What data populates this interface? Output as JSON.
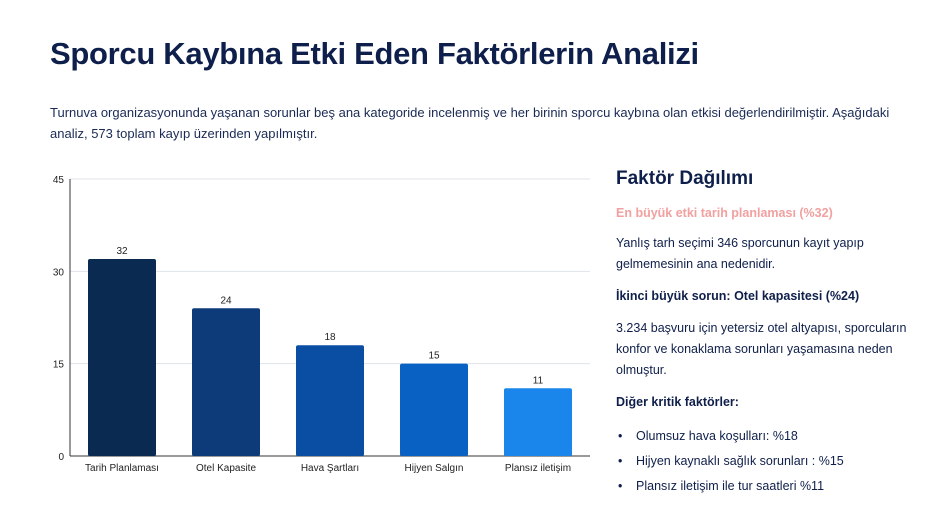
{
  "title": "Sporcu Kaybına Etki Eden Faktörlerin Analizi",
  "intro": "Turnuva organizasyonunda yaşanan sorunlar beş ana kategoride incelenmiş ve her birinin sporcu kaybına olan etkisi değerlendirilmiştir. Aşağıdaki analiz, 573 toplam kayıp üzerinden yapılmıştır.",
  "chart_data": {
    "type": "bar",
    "categories": [
      "Tarih Planlaması",
      "Otel Kapasite",
      "Hava Şartları",
      "Hijyen Salgın",
      "Plansız iletişim"
    ],
    "values": [
      32,
      24,
      18,
      15,
      11
    ],
    "data_labels": [
      "32",
      "24",
      "18",
      "15",
      "11"
    ],
    "y_ticks": [
      "0",
      "15",
      "30",
      "45"
    ],
    "ylim": [
      0,
      45
    ],
    "grid": true,
    "colors": [
      "#0b2a52",
      "#0d3a78",
      "#0a4ea3",
      "#0a61c4",
      "#1a85ea"
    ],
    "title": "",
    "xlabel": "",
    "ylabel": ""
  },
  "side": {
    "heading": "Faktör Dağılımı",
    "highlight": "En büyük etki tarih planlaması (%32)",
    "p1": "Yanlış tarh seçimi 346 sporcunun kayıt yapıp gelmemesinin ana nedenidir.",
    "p2": "İkinci büyük sorun: Otel kapasitesi (%24)",
    "p3": "3.234 başvuru için yetersiz otel altyapısı, sporcuların konfor ve konaklama sorunları yaşamasına neden olmuştur.",
    "p4": "Diğer kritik faktörler:",
    "bullets": [
      "Olumsuz hava koşulları: %18",
      "Hijyen kaynaklı sağlık sorunları : %15",
      "Plansız iletişim ile tur saatleri %11"
    ],
    "highlight_color": "#f2a0a0"
  }
}
